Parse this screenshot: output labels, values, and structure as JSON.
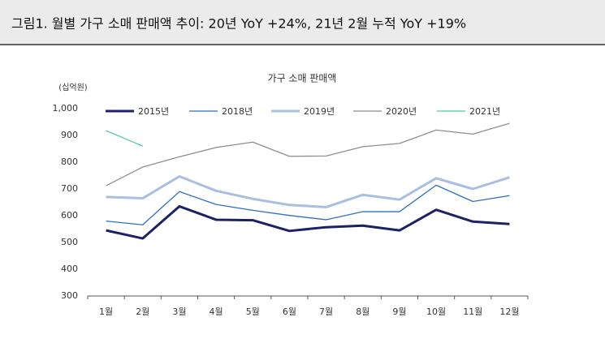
{
  "chart_data": {
    "type": "line",
    "caption": "그림1. 월별 가구 소매 판매액 추이: 20년 YoY +24%, 21년 2월 누적 YoY +19%",
    "title": "가구 소매 판매액",
    "y_unit": "(십억원)",
    "categories": [
      "1월",
      "2월",
      "3월",
      "4월",
      "5월",
      "6월",
      "7월",
      "8월",
      "9월",
      "10월",
      "11월",
      "12월"
    ],
    "series": [
      {
        "name": "2015년",
        "color": "#1b2266",
        "width": 3,
        "values": [
          545,
          515,
          635,
          585,
          583,
          543,
          557,
          563,
          545,
          622,
          578,
          569
        ]
      },
      {
        "name": "2018년",
        "color": "#2f6fbe",
        "width": 1.3,
        "values": [
          580,
          566,
          690,
          642,
          620,
          601,
          585,
          615,
          615,
          714,
          653,
          675
        ]
      },
      {
        "name": "2019년",
        "color": "#a8bfe2",
        "width": 3,
        "values": [
          670,
          665,
          747,
          693,
          663,
          640,
          632,
          678,
          660,
          740,
          700,
          743
        ]
      },
      {
        "name": "2020년",
        "color": "#8e8e8e",
        "width": 1.3,
        "values": [
          712,
          782,
          820,
          855,
          875,
          822,
          823,
          858,
          870,
          920,
          905,
          945
        ]
      },
      {
        "name": "2021년",
        "color": "#52c79e",
        "width": 1.3,
        "values": [
          918,
          860,
          null,
          null,
          null,
          null,
          null,
          null,
          null,
          null,
          null,
          null
        ]
      }
    ],
    "ylim": [
      300,
      1000
    ],
    "yticks": [
      300,
      400,
      500,
      600,
      700,
      800,
      900,
      {
        "value": 1000,
        "label": "1,000"
      }
    ],
    "grid": false
  }
}
